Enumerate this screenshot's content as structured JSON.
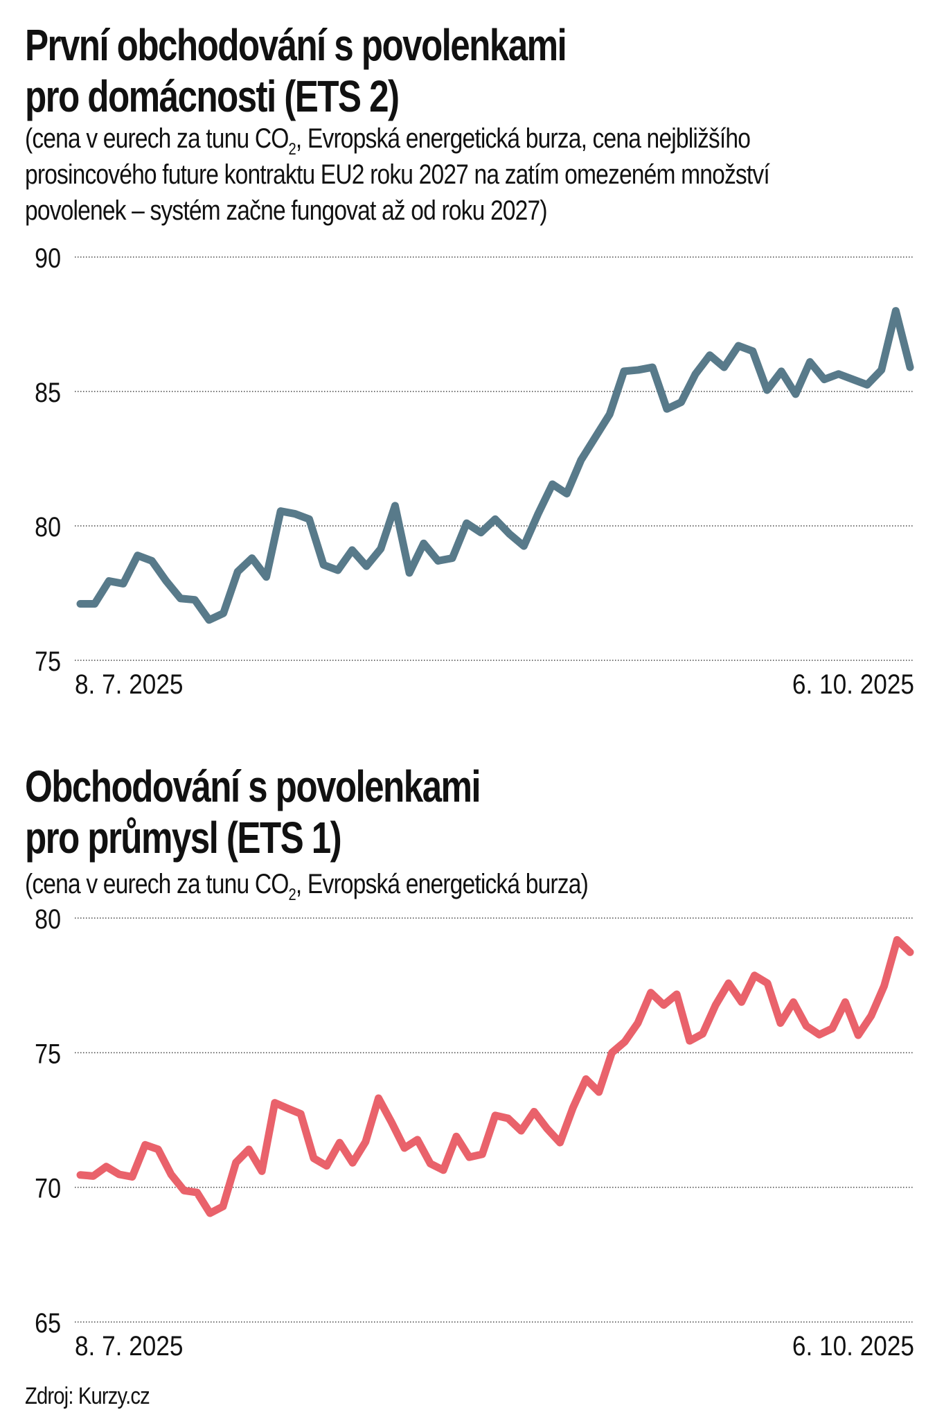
{
  "charts_text": [
    {
      "title_line1": "První obchodování s povolenkami",
      "title_line2": "pro domácnosti (ETS 2)",
      "subtitle_line1_a": "(cena v eurech za tunu CO",
      "subtitle_sub": "2",
      "subtitle_line1_b": ", Evropská energetická burza, cena nejbližšího",
      "subtitle_line2": "prosincového future kontraktu EU2 roku 2027 na zatím omezeném množství",
      "subtitle_line3": "povolenek – systém začne fungovat až od roku 2027)"
    },
    {
      "title_line1": "Obchodování s povolenkami",
      "title_line2": "pro průmysl (ETS 1)",
      "subtitle_line1_a": "(cena v eurech za tunu CO",
      "subtitle_sub": "2",
      "subtitle_line1_b": ", Evropská energetická burza)"
    }
  ],
  "source": "Zdroj: Kurzy.cz",
  "chart_data": [
    {
      "type": "line",
      "title": "První obchodování s povolenkami pro domácnosti (ETS 2)",
      "x_start": "8. 7. 2025",
      "x_end": "6. 10. 2025",
      "ylim": [
        75,
        90
      ],
      "yticks": [
        "90",
        "85",
        "80",
        "75"
      ],
      "ytick_values": [
        90,
        85,
        80,
        75
      ],
      "grid": true,
      "color": "#587a8a",
      "values": [
        77.1,
        77.1,
        77.95,
        77.85,
        78.9,
        78.7,
        77.95,
        77.3,
        77.25,
        76.5,
        76.75,
        78.3,
        78.8,
        78.1,
        80.55,
        80.45,
        80.25,
        78.55,
        78.35,
        79.1,
        78.5,
        79.15,
        80.75,
        78.25,
        79.35,
        78.7,
        78.8,
        80.1,
        79.75,
        80.25,
        79.7,
        79.25,
        80.45,
        81.55,
        81.2,
        82.45,
        83.3,
        84.15,
        85.75,
        85.8,
        85.9,
        84.35,
        84.6,
        85.65,
        86.35,
        85.9,
        86.7,
        86.5,
        85.05,
        85.75,
        84.9,
        86.1,
        85.45,
        85.65,
        85.45,
        85.25,
        85.8,
        88.0,
        85.9
      ]
    },
    {
      "type": "line",
      "title": "Obchodování s povolenkami pro průmysl (ETS 1)",
      "x_start": "8. 7. 2025",
      "x_end": "6. 10. 2025",
      "ylim": [
        65,
        80
      ],
      "yticks": [
        "80",
        "75",
        "70",
        "65"
      ],
      "ytick_values": [
        80,
        75,
        70,
        65
      ],
      "grid": true,
      "color": "#e9626b",
      "values": [
        70.46,
        70.42,
        70.77,
        70.48,
        70.39,
        71.58,
        71.41,
        70.48,
        69.88,
        69.81,
        69.04,
        69.29,
        70.92,
        71.41,
        70.6,
        73.14,
        72.93,
        72.73,
        71.08,
        70.8,
        71.66,
        70.91,
        71.69,
        73.31,
        72.42,
        71.46,
        71.77,
        70.88,
        70.64,
        71.89,
        71.12,
        71.23,
        72.67,
        72.56,
        72.1,
        72.81,
        72.18,
        71.66,
        72.96,
        74.02,
        73.54,
        75.0,
        75.41,
        76.1,
        77.23,
        76.77,
        77.17,
        75.44,
        75.7,
        76.77,
        77.58,
        76.88,
        77.87,
        77.58,
        76.1,
        76.88,
        75.99,
        75.67,
        75.9,
        76.88,
        75.65,
        76.37,
        77.48,
        79.19,
        78.73
      ]
    }
  ]
}
